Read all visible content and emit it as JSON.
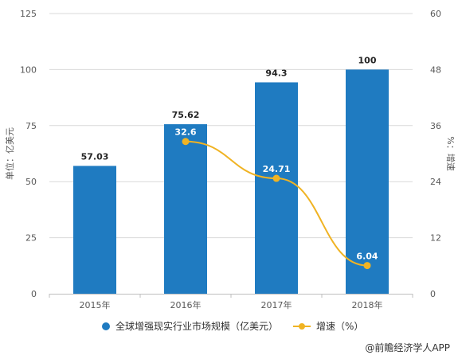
{
  "chart_data": {
    "type": "bar",
    "categories": [
      "2015年",
      "2016年",
      "2017年",
      "2018年"
    ],
    "series": [
      {
        "name": "全球增强现实行业市场规模（亿美元）",
        "type": "bar",
        "axis": "left",
        "values": [
          57.03,
          75.62,
          94.3,
          100
        ],
        "labels": [
          "57.03",
          "75.62",
          "94.3",
          "100"
        ]
      },
      {
        "name": "增速（%）",
        "type": "line",
        "axis": "right",
        "values": [
          null,
          32.6,
          24.71,
          6.04
        ],
        "labels": [
          "",
          "32.6",
          "24.71",
          "6.04"
        ]
      }
    ],
    "ylabel": "单位：亿美元",
    "y2label": "%：增速",
    "ylim": [
      0,
      125
    ],
    "y_ticks": [
      "0",
      "25",
      "50",
      "75",
      "100",
      "125"
    ],
    "y2lim": [
      0,
      60
    ],
    "y2_ticks": [
      "0",
      "12",
      "24",
      "36",
      "48",
      "60"
    ],
    "grid": true,
    "legend_position": "bottom",
    "colors": {
      "bar": "#1f7bc1",
      "line": "#f0b323"
    }
  },
  "legend": {
    "bar_label": "全球增强现实行业市场规模（亿美元）",
    "line_label": "增速（%）"
  },
  "source": "@前瞻经济学人APP"
}
